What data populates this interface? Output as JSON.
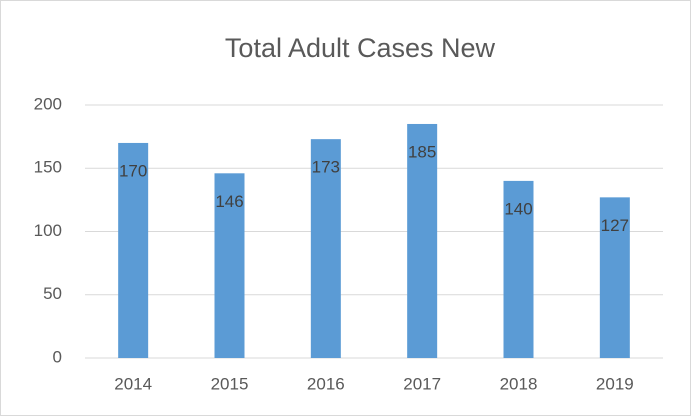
{
  "chart_data": {
    "type": "bar",
    "title": "Total Adult Cases New",
    "categories": [
      "2014",
      "2015",
      "2016",
      "2017",
      "2018",
      "2019"
    ],
    "values": [
      170,
      146,
      173,
      185,
      140,
      127
    ],
    "color": "#5b9bd5",
    "ylim": [
      0,
      200
    ],
    "yticks": [
      0,
      50,
      100,
      150,
      200
    ],
    "grid": true,
    "data_labels": true
  }
}
